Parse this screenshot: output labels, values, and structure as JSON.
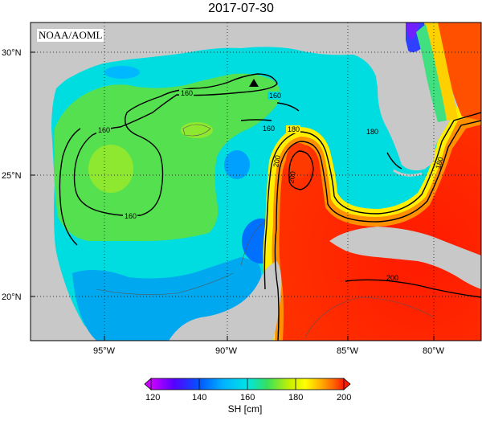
{
  "title": "2017-07-30",
  "credit": "NOAA/AOML",
  "map": {
    "lat_labels": [
      "30°N",
      "25°N",
      "20°N"
    ],
    "lon_labels": [
      "95°W",
      "90°W",
      "85°W",
      "80°W"
    ],
    "contour_labels": [
      "160",
      "160",
      "160",
      "160",
      "160",
      "180",
      "200",
      "200",
      "180",
      "180",
      "200"
    ]
  },
  "colorbar": {
    "title": "SH [cm]",
    "ticks": [
      "120",
      "140",
      "160",
      "180",
      "200"
    ],
    "range": [
      120,
      200
    ],
    "colors": [
      "#cc00ff",
      "#5500ff",
      "#0055ff",
      "#00b0ff",
      "#00e5e5",
      "#33e060",
      "#c8f000",
      "#ffff00",
      "#ffb000",
      "#ff6000",
      "#ff1a00"
    ]
  },
  "marker": "triangle-marker"
}
